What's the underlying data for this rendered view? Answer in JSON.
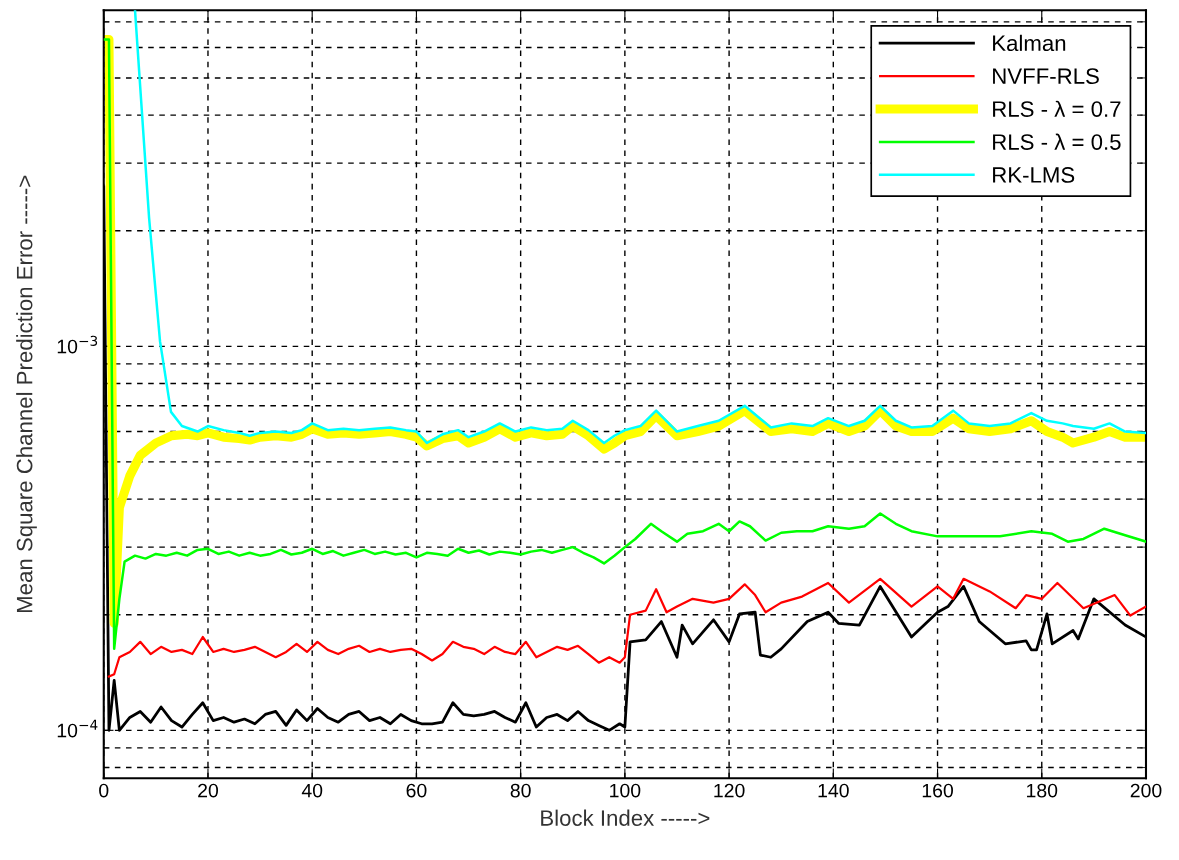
{
  "chart_data": {
    "type": "line",
    "xlabel": "Block Index ----->",
    "ylabel": "Mean Square Channel Prediction Error ----->",
    "log": "y",
    "grid": true,
    "legend": "top right",
    "marker": "none",
    "line_style": "solid",
    "xlim": [
      0,
      200
    ],
    "xticks": [
      0,
      20,
      40,
      60,
      80,
      100,
      120,
      140,
      160,
      180,
      200
    ],
    "ylim": [
      7.5e-05,
      0.0075
    ],
    "yticks": [
      {
        "value": 0.0001,
        "label": "10$^{−4}$"
      },
      {
        "value": 0.001,
        "label": "10$^{−3}$"
      }
    ],
    "series": [
      {
        "name": "Kalman",
        "color": "#000000",
        "x": [
          0,
          1,
          2,
          3,
          5,
          7,
          9,
          11,
          13,
          15,
          17,
          19,
          21,
          23,
          25,
          27,
          29,
          31,
          33,
          35,
          37,
          39,
          41,
          43,
          45,
          47,
          49,
          51,
          53,
          55,
          57,
          59,
          61,
          63,
          65,
          67,
          69,
          71,
          73,
          75,
          77,
          79,
          81,
          83,
          85,
          87,
          89,
          91,
          93,
          95,
          97,
          99,
          100,
          101,
          104,
          107,
          110,
          111,
          113,
          117,
          120,
          122,
          125,
          126,
          128,
          130,
          135,
          139,
          141,
          145,
          149,
          155,
          160,
          162,
          165,
          168,
          173,
          177,
          178,
          179,
          181,
          182,
          186,
          187,
          190,
          196,
          200
        ],
        "values": [
          0.0026,
          0.0001,
          0.000135,
          0.0001,
          0.000108,
          0.000112,
          0.000105,
          0.000115,
          0.000106,
          0.000102,
          0.00011,
          0.000118,
          0.000106,
          0.000108,
          0.000105,
          0.000107,
          0.000104,
          0.00011,
          0.000112,
          0.000103,
          0.000113,
          0.000106,
          0.000114,
          0.000108,
          0.000105,
          0.00011,
          0.000112,
          0.000106,
          0.000108,
          0.000104,
          0.00011,
          0.000106,
          0.000104,
          0.000104,
          0.000105,
          0.000118,
          0.00011,
          0.000109,
          0.00011,
          0.000112,
          0.000108,
          0.000105,
          0.000118,
          0.000102,
          0.000108,
          0.00011,
          0.000106,
          0.000112,
          0.000106,
          0.000103,
          0.0001,
          0.000104,
          0.000102,
          0.00017,
          0.000172,
          0.000192,
          0.000155,
          0.000188,
          0.000168,
          0.000194,
          0.00017,
          0.000201,
          0.000203,
          0.000157,
          0.000155,
          0.000163,
          0.000192,
          0.000203,
          0.00019,
          0.000188,
          0.000237,
          0.000175,
          0.000203,
          0.00021,
          0.000237,
          0.000192,
          0.000168,
          0.000171,
          0.000162,
          0.000162,
          0.000201,
          0.000168,
          0.000182,
          0.000173,
          0.00022,
          0.000188,
          0.000175
        ]
      },
      {
        "name": "NVFF-RLS",
        "color": "#ff0000",
        "x": [
          1,
          2,
          3,
          5,
          7,
          9,
          11,
          13,
          15,
          17,
          19,
          21,
          23,
          25,
          27,
          29,
          31,
          33,
          35,
          37,
          39,
          41,
          43,
          45,
          47,
          49,
          51,
          53,
          55,
          57,
          59,
          61,
          63,
          65,
          67,
          69,
          71,
          73,
          75,
          77,
          79,
          81,
          83,
          85,
          87,
          89,
          91,
          93,
          95,
          97,
          99,
          100,
          101,
          104,
          106,
          108,
          110,
          113,
          117,
          120,
          123,
          125,
          127,
          130,
          134,
          139,
          143,
          149,
          155,
          160,
          163,
          165,
          170,
          175,
          177,
          180,
          183,
          188,
          194,
          197,
          200
        ],
        "values": [
          0.000138,
          0.00014,
          0.000155,
          0.00016,
          0.00017,
          0.000158,
          0.000165,
          0.00016,
          0.000162,
          0.000158,
          0.000175,
          0.00016,
          0.000163,
          0.00016,
          0.000162,
          0.000165,
          0.00016,
          0.000155,
          0.00016,
          0.000168,
          0.00016,
          0.00017,
          0.000162,
          0.000158,
          0.000163,
          0.000166,
          0.00016,
          0.000163,
          0.00016,
          0.000162,
          0.000163,
          0.000158,
          0.000152,
          0.000158,
          0.00017,
          0.000165,
          0.000163,
          0.000158,
          0.000165,
          0.00016,
          0.000158,
          0.00017,
          0.000155,
          0.00016,
          0.000165,
          0.000162,
          0.000166,
          0.000158,
          0.00015,
          0.000155,
          0.00015,
          0.000155,
          0.0002,
          0.000205,
          0.000233,
          0.000203,
          0.00021,
          0.00022,
          0.000215,
          0.00022,
          0.00024,
          0.000225,
          0.000203,
          0.000215,
          0.000223,
          0.000242,
          0.000215,
          0.000248,
          0.00021,
          0.000237,
          0.00022,
          0.000248,
          0.00023,
          0.000208,
          0.000225,
          0.00022,
          0.000242,
          0.000208,
          0.000225,
          0.000199,
          0.00021
        ]
      },
      {
        "name": "RLS - λ = 0.7",
        "color": "#ffff00",
        "x": [
          0,
          1,
          2,
          3,
          5,
          7,
          10,
          13,
          16,
          18,
          20,
          23,
          26,
          28,
          30,
          33,
          36,
          38,
          40,
          43,
          46,
          49,
          52,
          55,
          58,
          60,
          62,
          65,
          68,
          70,
          73,
          76,
          79,
          82,
          85,
          88,
          90,
          93,
          96,
          98,
          100,
          103,
          106,
          110,
          114,
          118,
          123,
          128,
          132,
          136,
          139,
          143,
          146,
          149,
          152,
          155,
          159,
          163,
          166,
          170,
          174,
          178,
          181,
          184,
          186,
          190,
          193,
          196,
          200
        ],
        "values": [
          0.0063,
          0.0063,
          0.00019,
          0.00038,
          0.00046,
          0.00052,
          0.00056,
          0.000585,
          0.00059,
          0.000585,
          0.000595,
          0.00058,
          0.000575,
          0.00057,
          0.00058,
          0.000585,
          0.00058,
          0.00059,
          0.00061,
          0.00059,
          0.000595,
          0.00059,
          0.000595,
          0.0006,
          0.00059,
          0.00058,
          0.00055,
          0.000575,
          0.000585,
          0.00056,
          0.00058,
          0.00061,
          0.00058,
          0.000595,
          0.000585,
          0.00059,
          0.00062,
          0.000585,
          0.00054,
          0.00056,
          0.000585,
          0.0006,
          0.00066,
          0.000585,
          0.0006,
          0.00062,
          0.00068,
          0.0006,
          0.00061,
          0.0006,
          0.00063,
          0.0006,
          0.00062,
          0.00068,
          0.00062,
          0.0006,
          0.0006,
          0.00065,
          0.00061,
          0.0006,
          0.00061,
          0.00064,
          0.0006,
          0.00058,
          0.00056,
          0.00058,
          0.0006,
          0.00058,
          0.00058
        ]
      },
      {
        "name": "RLS - λ = 0.5",
        "color": "#00ff00",
        "x": [
          0,
          1,
          2,
          3,
          4,
          6,
          8,
          10,
          12,
          14,
          16,
          18,
          20,
          22,
          24,
          26,
          28,
          30,
          32,
          34,
          36,
          38,
          40,
          42,
          44,
          46,
          48,
          50,
          52,
          54,
          56,
          58,
          60,
          62,
          64,
          66,
          68,
          70,
          72,
          74,
          76,
          78,
          80,
          82,
          84,
          86,
          88,
          90,
          92,
          94,
          96,
          98,
          100,
          102,
          105,
          107,
          110,
          112,
          115,
          118,
          120,
          122,
          124,
          127,
          130,
          133,
          136,
          139,
          143,
          146,
          149,
          152,
          155,
          160,
          165,
          172,
          178,
          182,
          185,
          188,
          192,
          196,
          200
        ],
        "values": [
          0.0063,
          0.0063,
          0.000163,
          0.00022,
          0.000275,
          0.000285,
          0.00028,
          0.000288,
          0.000285,
          0.00029,
          0.000285,
          0.000295,
          0.000297,
          0.000288,
          0.000292,
          0.000285,
          0.00029,
          0.000285,
          0.000288,
          0.000295,
          0.000287,
          0.00029,
          0.000297,
          0.000288,
          0.000293,
          0.000285,
          0.00029,
          0.000295,
          0.000288,
          0.000292,
          0.000287,
          0.00029,
          0.000282,
          0.00029,
          0.000288,
          0.000285,
          0.000297,
          0.00029,
          0.000294,
          0.000287,
          0.000292,
          0.00029,
          0.000287,
          0.000292,
          0.000295,
          0.00029,
          0.000295,
          0.0003,
          0.00029,
          0.000282,
          0.000272,
          0.000285,
          0.0003,
          0.000315,
          0.000345,
          0.00033,
          0.00031,
          0.000325,
          0.00033,
          0.000345,
          0.00033,
          0.00035,
          0.00034,
          0.000312,
          0.000327,
          0.00033,
          0.00033,
          0.00034,
          0.000335,
          0.00034,
          0.000367,
          0.000345,
          0.00033,
          0.00032,
          0.00032,
          0.00032,
          0.00033,
          0.000325,
          0.00031,
          0.000315,
          0.000335,
          0.000322,
          0.00031
        ]
      },
      {
        "name": "RK-LMS",
        "color": "#00ffff",
        "x": [
          6,
          8.7,
          10.8,
          12.9,
          15,
          18,
          20,
          23,
          26,
          28,
          30,
          33,
          36,
          38,
          40,
          43,
          46,
          49,
          52,
          55,
          58,
          60,
          62,
          65,
          68,
          70,
          73,
          76,
          79,
          82,
          85,
          88,
          90,
          93,
          96,
          98,
          100,
          103,
          106,
          110,
          114,
          118,
          123,
          128,
          132,
          136,
          139,
          143,
          146,
          149,
          152,
          155,
          159,
          163,
          166,
          170,
          174,
          178,
          181,
          184,
          186,
          190,
          193,
          196,
          200
        ],
        "values": [
          0.0075,
          0.00216,
          0.00103,
          0.000675,
          0.00062,
          0.0006,
          0.00062,
          0.000605,
          0.000595,
          0.000585,
          0.000595,
          0.0006,
          0.000595,
          0.000605,
          0.00063,
          0.000605,
          0.00061,
          0.000605,
          0.00061,
          0.000615,
          0.000605,
          0.0006,
          0.00056,
          0.00059,
          0.000605,
          0.00058,
          0.0006,
          0.00063,
          0.0006,
          0.000615,
          0.000605,
          0.00061,
          0.00064,
          0.000605,
          0.00056,
          0.000585,
          0.000605,
          0.00062,
          0.00068,
          0.0006,
          0.00062,
          0.00064,
          0.0007,
          0.000615,
          0.00063,
          0.00062,
          0.00065,
          0.00062,
          0.00064,
          0.0007,
          0.00064,
          0.000615,
          0.00062,
          0.00068,
          0.00063,
          0.00062,
          0.00063,
          0.00067,
          0.00064,
          0.00063,
          0.00062,
          0.00061,
          0.00063,
          0.0006,
          0.000595
        ]
      }
    ]
  }
}
